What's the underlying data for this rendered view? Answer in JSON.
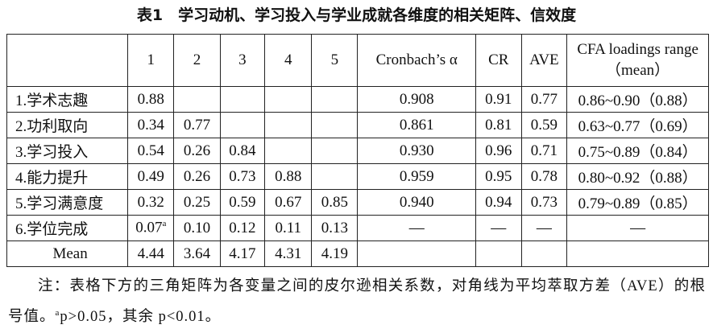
{
  "title": "表1　学习动机、学习投入与学业成就各维度的相关矩阵、信效度",
  "table": {
    "header": [
      null,
      "1",
      "2",
      "3",
      "4",
      "5",
      "Cronbach’s α",
      "CR",
      "AVE",
      "CFA loadings range（mean）"
    ],
    "rows": [
      [
        "1.学术志趣",
        "0.88",
        null,
        null,
        null,
        null,
        "0.908",
        "0.91",
        "0.77",
        "0.86~0.90（0.88）"
      ],
      [
        "2.功利取向",
        "0.34",
        "0.77",
        null,
        null,
        null,
        "0.861",
        "0.81",
        "0.59",
        "0.63~0.77（0.69）"
      ],
      [
        "3.学习投入",
        "0.54",
        "0.26",
        "0.84",
        null,
        null,
        "0.930",
        "0.96",
        "0.71",
        "0.75~0.89（0.84）"
      ],
      [
        "4.能力提升",
        "0.49",
        "0.26",
        "0.73",
        "0.88",
        null,
        "0.959",
        "0.95",
        "0.78",
        "0.80~0.92（0.88）"
      ],
      [
        "5.学习满意度",
        "0.32",
        "0.25",
        "0.59",
        "0.67",
        "0.85",
        "0.940",
        "0.94",
        "0.73",
        "0.79~0.89（0.85）"
      ],
      [
        "6.学位完成",
        {
          "text": "0.07",
          "sup": "a"
        },
        "0.10",
        "0.12",
        "0.11",
        "0.13",
        "—",
        "—",
        "—",
        "—"
      ],
      [
        "Mean",
        "4.44",
        "3.64",
        "4.17",
        "4.31",
        "4.19",
        null,
        null,
        null,
        null
      ]
    ]
  },
  "note": {
    "text": "注：表格下方的三角矩阵为各变量之间的皮尔逊相关系数，对角线为平均萃取方差（AVE）的根号值。",
    "sup": "a",
    "tail": "p>0.05，其余 p<0.01。"
  }
}
